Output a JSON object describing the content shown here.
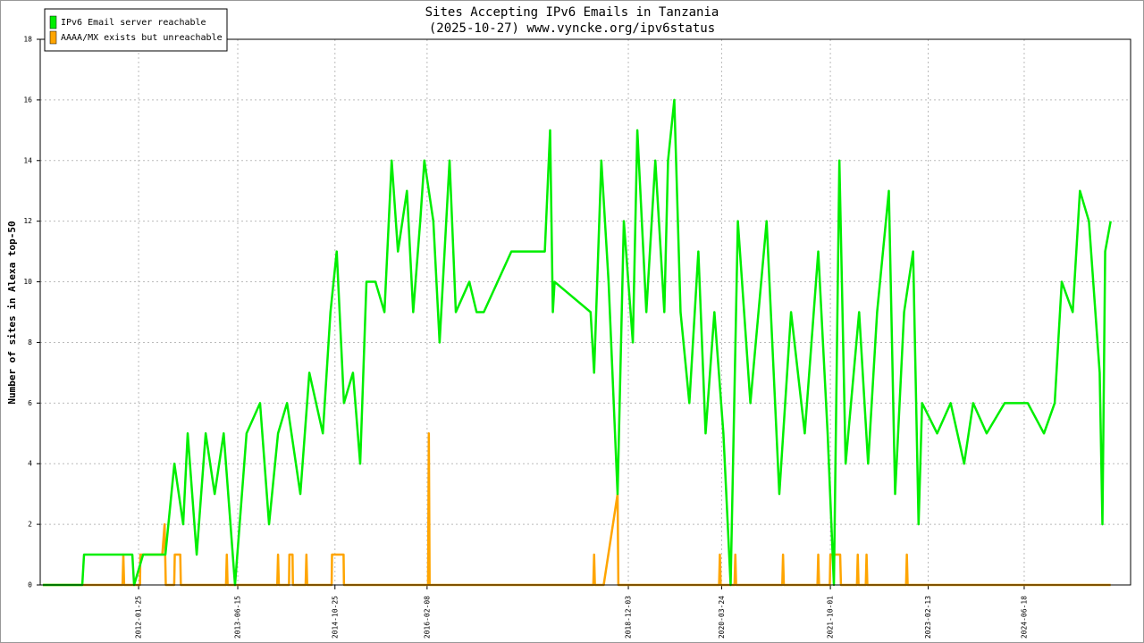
{
  "chart_data": {
    "type": "line",
    "title": "Sites Accepting IPv6 Emails in Tanzania",
    "subtitle": "(2025-10-27) www.vyncke.org/ipv6status",
    "y_label": "Number of sites in Alexa top-50",
    "xlim": [
      "2010-09-09",
      "2025-12-14"
    ],
    "xticks": [
      "2012-01-25",
      "2013-06-15",
      "2014-10-25",
      "2016-02-08",
      "2018-12-03",
      "2020-03-24",
      "2021-10-01",
      "2023-02-13",
      "2024-06-18"
    ],
    "ylim": [
      0,
      18
    ],
    "yticks": [
      0,
      2,
      4,
      6,
      8,
      10,
      12,
      14,
      16,
      18
    ],
    "grid": true,
    "legend": "top-left",
    "series": [
      {
        "name": "IPv6 Email server reachable",
        "color": "#00ee00",
        "x": [
          "2010-09-23",
          "2011-04-12",
          "2011-04-21",
          "2011-12-24",
          "2012-01-02",
          "2012-02-17",
          "2012-06-10",
          "2012-07-26",
          "2012-09-09",
          "2012-10-02",
          "2012-11-17",
          "2013-01-02",
          "2013-02-17",
          "2013-04-04",
          "2013-06-01",
          "2013-07-30",
          "2013-10-07",
          "2013-11-22",
          "2014-01-07",
          "2014-02-22",
          "2014-05-01",
          "2014-06-16",
          "2014-08-24",
          "2014-10-02",
          "2014-11-03",
          "2014-12-10",
          "2015-01-25",
          "2015-03-03",
          "2015-04-04",
          "2015-05-20",
          "2015-07-05",
          "2015-08-11",
          "2015-09-12",
          "2015-10-28",
          "2015-11-29",
          "2016-01-04",
          "2016-01-25",
          "2016-03-11",
          "2016-04-12",
          "2016-06-02",
          "2016-07-04",
          "2016-09-11",
          "2016-10-18",
          "2016-11-24",
          "2017-04-14",
          "2017-10-02",
          "2017-10-29",
          "2017-11-12",
          "2017-11-21",
          "2018-05-24",
          "2018-06-11",
          "2018-07-18",
          "2018-08-24",
          "2018-10-09",
          "2018-11-10",
          "2018-12-26",
          "2019-01-18",
          "2019-03-05",
          "2019-04-20",
          "2019-06-05",
          "2019-06-24",
          "2019-07-26",
          "2019-08-27",
          "2019-10-11",
          "2019-11-26",
          "2020-01-02",
          "2020-02-16",
          "2020-04-02",
          "2020-05-09",
          "2020-06-15",
          "2020-08-18",
          "2020-11-09",
          "2021-01-13",
          "2021-03-14",
          "2021-05-23",
          "2021-07-31",
          "2021-09-17",
          "2021-10-19",
          "2021-11-16",
          "2021-12-18",
          "2022-02-25",
          "2022-04-12",
          "2022-05-28",
          "2022-07-27",
          "2022-08-28",
          "2022-10-13",
          "2022-11-28",
          "2022-12-26",
          "2023-01-13",
          "2023-03-31",
          "2023-06-08",
          "2023-08-16",
          "2023-10-01",
          "2023-12-09",
          "2024-03-10",
          "2024-07-06",
          "2024-09-27",
          "2024-11-21",
          "2024-12-27",
          "2025-02-21",
          "2025-03-30",
          "2025-05-15",
          "2025-07-09",
          "2025-07-23",
          "2025-08-06",
          "2025-09-03"
        ],
        "values": [
          0,
          0,
          1,
          1,
          0,
          1,
          1,
          4,
          2,
          5,
          1,
          5,
          3,
          5,
          0,
          5,
          6,
          2,
          5,
          6,
          3,
          7,
          5,
          9,
          11,
          6,
          7,
          4,
          10,
          10,
          9,
          14,
          11,
          13,
          9,
          12,
          14,
          12,
          8,
          14,
          9,
          10,
          9,
          9,
          11,
          11,
          15,
          9,
          10,
          9,
          7,
          14,
          10,
          3,
          12,
          8,
          15,
          9,
          14,
          9,
          14,
          16,
          9,
          6,
          11,
          5,
          9,
          5,
          0,
          12,
          6,
          12,
          3,
          9,
          5,
          11,
          5,
          0,
          14,
          4,
          9,
          4,
          9,
          13,
          3,
          9,
          11,
          2,
          6,
          5,
          6,
          4,
          6,
          5,
          6,
          6,
          5,
          6,
          10,
          9,
          13,
          12,
          7,
          2,
          11,
          12
        ]
      },
      {
        "name": "AAAA/MX exists but unreachable",
        "color": "#ffa500",
        "x": [
          "2010-09-23",
          "2011-11-04",
          "2011-11-08",
          "2011-11-12",
          "2012-02-01",
          "2012-02-03",
          "2012-05-25",
          "2012-06-06",
          "2012-06-12",
          "2012-07-25",
          "2012-07-28",
          "2012-08-25",
          "2012-08-28",
          "2013-04-16",
          "2013-04-20",
          "2013-04-24",
          "2014-01-03",
          "2014-01-07",
          "2014-01-11",
          "2014-03-04",
          "2014-03-06",
          "2014-03-22",
          "2014-03-24",
          "2014-05-28",
          "2014-06-01",
          "2014-06-05",
          "2014-10-08",
          "2014-10-10",
          "2014-12-08",
          "2014-12-10",
          "2016-02-13",
          "2016-02-17",
          "2016-02-21",
          "2018-06-07",
          "2018-06-11",
          "2018-06-15",
          "2018-07-30",
          "2018-10-09",
          "2018-10-13",
          "2020-03-11",
          "2020-03-15",
          "2020-03-19",
          "2020-05-29",
          "2020-06-02",
          "2020-06-06",
          "2021-01-28",
          "2021-02-01",
          "2021-02-05",
          "2021-07-27",
          "2021-07-31",
          "2021-08-04",
          "2021-09-28",
          "2021-10-01",
          "2021-11-20",
          "2021-11-24",
          "2022-02-14",
          "2022-02-18",
          "2022-02-22",
          "2022-03-31",
          "2022-04-04",
          "2022-04-08",
          "2022-10-23",
          "2022-10-27",
          "2022-10-31",
          "2025-09-03"
        ],
        "values": [
          0,
          0,
          1,
          0,
          0,
          1,
          1,
          2,
          0,
          0,
          1,
          1,
          0,
          0,
          1,
          0,
          0,
          1,
          0,
          0,
          1,
          1,
          0,
          0,
          1,
          0,
          0,
          1,
          1,
          0,
          0,
          5,
          0,
          0,
          1,
          0,
          0,
          3,
          0,
          0,
          1,
          0,
          0,
          1,
          0,
          0,
          1,
          0,
          0,
          1,
          0,
          0,
          1,
          1,
          0,
          0,
          1,
          0,
          0,
          1,
          0,
          0,
          1,
          0,
          0
        ]
      }
    ]
  }
}
